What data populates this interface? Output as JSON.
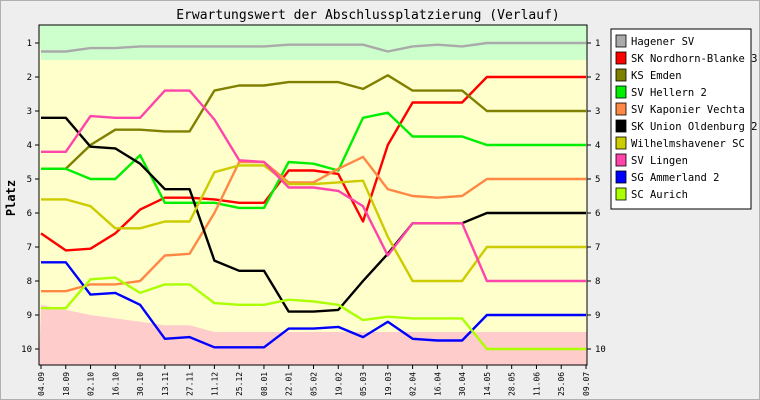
{
  "chart_data": {
    "type": "line",
    "title": "Erwartungswert der Abschlussplatzierung (Verlauf)",
    "xlabel": "",
    "ylabel": "Platz",
    "ylim": [
      1,
      10
    ],
    "y_inverted": true,
    "y_ticks": [
      "1",
      "2",
      "3",
      "4",
      "5",
      "6",
      "7",
      "8",
      "9",
      "10"
    ],
    "categories": [
      "04.09",
      "18.09",
      "02.10",
      "16.10",
      "30.10",
      "13.11",
      "27.11",
      "11.12",
      "25.12",
      "08.01",
      "22.01",
      "05.02",
      "19.02",
      "05.03",
      "19.03",
      "02.04",
      "16.04",
      "30.04",
      "14.05",
      "28.05",
      "11.06",
      "25.06",
      "09.07"
    ],
    "zones": [
      {
        "name": "top",
        "color": "#ccffcc",
        "values": [
          1.5,
          1.5,
          1.5,
          1.5,
          1.5,
          1.5,
          1.5,
          1.5,
          1.5,
          1.5,
          1.5,
          1.5,
          1.5,
          1.5,
          1.5,
          1.5,
          1.5,
          1.5,
          1.5,
          1.5,
          1.5,
          1.5,
          1.5
        ]
      },
      {
        "name": "bottom",
        "color": "#ffcccc",
        "values": [
          8.7,
          8.85,
          9.0,
          9.1,
          9.2,
          9.3,
          9.3,
          9.5,
          9.5,
          9.5,
          9.5,
          9.5,
          9.5,
          9.5,
          9.5,
          9.5,
          9.5,
          9.5,
          9.5,
          9.5,
          9.5,
          9.5,
          9.5
        ]
      }
    ],
    "middle_color": "#ffffcc",
    "series": [
      {
        "name": "Hagener SV",
        "color": "#aaaaaa",
        "values": [
          1.25,
          1.25,
          1.15,
          1.15,
          1.1,
          1.1,
          1.1,
          1.1,
          1.1,
          1.1,
          1.05,
          1.05,
          1.05,
          1.05,
          1.25,
          1.1,
          1.05,
          1.1,
          1.0,
          1.0,
          1.0,
          1.0,
          1.0
        ]
      },
      {
        "name": "SK Nordhorn-Blanke 3",
        "color": "#ff0000",
        "values": [
          6.6,
          7.1,
          7.05,
          6.6,
          5.9,
          5.55,
          5.55,
          5.6,
          5.7,
          5.7,
          4.75,
          4.75,
          4.85,
          6.25,
          4.0,
          2.75,
          2.75,
          2.75,
          2.0,
          2.0,
          2.0,
          2.0,
          2.0
        ]
      },
      {
        "name": "KS Emden",
        "color": "#808000",
        "values": [
          4.7,
          4.7,
          4.0,
          3.55,
          3.55,
          3.6,
          3.6,
          2.4,
          2.25,
          2.25,
          2.15,
          2.15,
          2.15,
          2.35,
          1.95,
          2.4,
          2.4,
          2.4,
          3.0,
          3.0,
          3.0,
          3.0,
          3.0
        ]
      },
      {
        "name": "SV Hellern 2",
        "color": "#00ee00",
        "values": [
          4.7,
          4.7,
          5.0,
          5.0,
          4.3,
          5.7,
          5.7,
          5.7,
          5.85,
          5.85,
          4.5,
          4.55,
          4.75,
          3.2,
          3.05,
          3.75,
          3.75,
          3.75,
          4.0,
          4.0,
          4.0,
          4.0,
          4.0
        ]
      },
      {
        "name": "SV Kaponier Vechta",
        "color": "#ff8844",
        "values": [
          8.3,
          8.3,
          8.1,
          8.1,
          8.0,
          7.25,
          7.2,
          6.0,
          4.5,
          4.5,
          5.1,
          5.1,
          4.7,
          4.35,
          5.3,
          5.5,
          5.55,
          5.5,
          5.0,
          5.0,
          5.0,
          5.0,
          5.0
        ]
      },
      {
        "name": "SK Union Oldenburg 2",
        "color": "#000000",
        "values": [
          3.2,
          3.2,
          4.05,
          4.1,
          4.55,
          5.3,
          5.3,
          7.4,
          7.7,
          7.7,
          8.9,
          8.9,
          8.85,
          8.0,
          7.2,
          6.3,
          6.3,
          6.3,
          6.0,
          6.0,
          6.0,
          6.0,
          6.0
        ]
      },
      {
        "name": "Wilhelmshavener SC",
        "color": "#cccc00",
        "values": [
          5.6,
          5.6,
          5.8,
          6.45,
          6.45,
          6.25,
          6.25,
          4.8,
          4.6,
          4.6,
          5.15,
          5.15,
          5.1,
          5.05,
          6.7,
          8.0,
          8.0,
          8.0,
          7.0,
          7.0,
          7.0,
          7.0,
          7.0
        ]
      },
      {
        "name": "SV Lingen",
        "color": "#ff44aa",
        "values": [
          4.2,
          4.2,
          3.15,
          3.2,
          3.2,
          2.4,
          2.4,
          3.25,
          4.45,
          4.5,
          5.25,
          5.25,
          5.35,
          5.8,
          7.25,
          6.3,
          6.3,
          6.3,
          8.0,
          8.0,
          8.0,
          8.0,
          8.0
        ]
      },
      {
        "name": "SG Ammerland 2",
        "color": "#0000ff",
        "values": [
          7.45,
          7.45,
          8.4,
          8.35,
          8.7,
          9.7,
          9.65,
          9.95,
          9.95,
          9.95,
          9.4,
          9.4,
          9.35,
          9.65,
          9.2,
          9.7,
          9.75,
          9.75,
          9.0,
          9.0,
          9.0,
          9.0,
          9.0
        ]
      },
      {
        "name": "SC Aurich",
        "color": "#aaff00",
        "values": [
          8.8,
          8.8,
          7.95,
          7.9,
          8.35,
          8.1,
          8.1,
          8.65,
          8.7,
          8.7,
          8.55,
          8.6,
          8.7,
          9.15,
          9.05,
          9.1,
          9.1,
          9.1,
          10.0,
          10.0,
          10.0,
          10.0,
          10.0
        ]
      }
    ]
  }
}
